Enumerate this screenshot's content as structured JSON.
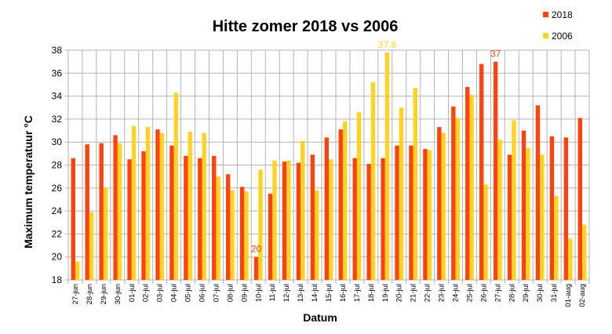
{
  "chart_data": {
    "type": "bar",
    "title": "Hitte zomer 2018 vs 2006",
    "xlabel": "Datum",
    "ylabel": "Maximum temperatuur °C",
    "ylim": [
      18,
      38
    ],
    "yticks": [
      18,
      20,
      22,
      24,
      26,
      28,
      30,
      32,
      34,
      36,
      38
    ],
    "grid": true,
    "legend_position": "top-right",
    "categories": [
      "27-jun",
      "28-jun",
      "29-jun",
      "30-jun",
      "01-jul",
      "02-jul",
      "03-jul",
      "04-jul",
      "05-jul",
      "06-jul",
      "07-jul",
      "08-jul",
      "09-jul",
      "10-jul",
      "11-jul",
      "12-jul",
      "13-jul",
      "14-jul",
      "15-jul",
      "16-jul",
      "17-jul",
      "18-jul",
      "19-jul",
      "20-jul",
      "21-jul",
      "22-jul",
      "23-jul",
      "24-jul",
      "25-jul",
      "26-jul",
      "27-jul",
      "28-jul",
      "29-jul",
      "30-jul",
      "31-jul",
      "01-aug",
      "02-aug"
    ],
    "series": [
      {
        "name": "2018",
        "color": "#ff420e",
        "values": [
          28.6,
          29.8,
          29.9,
          30.6,
          28.5,
          29.2,
          31.1,
          29.7,
          28.8,
          28.6,
          28.8,
          27.2,
          26.1,
          20.0,
          25.5,
          28.3,
          28.2,
          28.9,
          30.4,
          31.1,
          28.6,
          28.1,
          28.6,
          29.7,
          29.7,
          29.4,
          31.3,
          33.1,
          34.8,
          36.8,
          37.0,
          28.9,
          31.0,
          33.2,
          30.5,
          30.4,
          32.1
        ]
      },
      {
        "name": "2006",
        "color": "#ffd320",
        "values": [
          19.6,
          23.9,
          26.0,
          29.9,
          31.4,
          31.3,
          30.8,
          34.3,
          30.9,
          30.8,
          27.0,
          25.8,
          25.7,
          27.6,
          28.4,
          28.4,
          30.1,
          25.8,
          28.5,
          31.8,
          32.6,
          35.2,
          37.8,
          33.0,
          34.7,
          29.3,
          30.8,
          32.1,
          34.1,
          26.3,
          30.2,
          31.9,
          29.5,
          28.9,
          25.3,
          21.6,
          22.8
        ]
      }
    ],
    "annotations": [
      {
        "series": "2018",
        "category": "10-jul",
        "text": "20",
        "color": "#ff420e"
      },
      {
        "series": "2006",
        "category": "19-jul",
        "text": "37.8",
        "color": "#ffd320"
      },
      {
        "series": "2018",
        "category": "27-jul",
        "text": "37",
        "color": "#ff420e"
      }
    ]
  }
}
